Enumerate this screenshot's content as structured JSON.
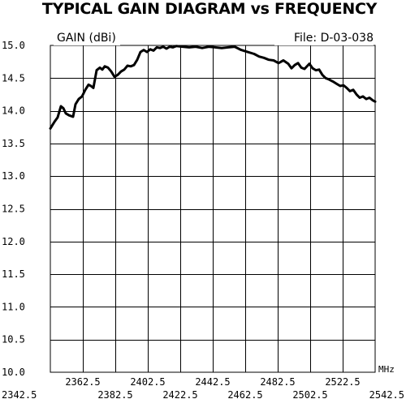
{
  "chart_data": {
    "type": "line",
    "title": "TYPICAL GAIN DIAGRAM vs FREQUENCY",
    "ylabel": "GAIN (dBi)",
    "file_label": "File:  D-03-038",
    "x_unit": "MHz",
    "xlim": [
      2342.5,
      2542.5
    ],
    "ylim": [
      10.0,
      15.0
    ],
    "grid": true,
    "x_ticks_lower": [
      "2342.5",
      "2382.5",
      "2422.5",
      "2462.5",
      "2502.5",
      "2542.5"
    ],
    "x_ticks_upper": [
      "2362.5",
      "2402.5",
      "2442.5",
      "2482.5",
      "2522.5"
    ],
    "y_ticks": [
      "15.0",
      "14.5",
      "14.0",
      "13.5",
      "13.0",
      "12.5",
      "12.0",
      "11.5",
      "11.0",
      "10.5",
      "10.0"
    ],
    "series": [
      {
        "x": [
          2342.5,
          2345,
          2347,
          2349,
          2350.5,
          2352,
          2354,
          2356.5,
          2358,
          2360,
          2362,
          2364,
          2366,
          2367.5,
          2369,
          2371,
          2373,
          2374.5,
          2376,
          2378,
          2380,
          2382,
          2384,
          2386,
          2388,
          2390,
          2392,
          2394,
          2396,
          2398,
          2400,
          2402,
          2404,
          2406,
          2408,
          2410,
          2412,
          2414,
          2416,
          2418,
          2420,
          2424,
          2428,
          2432,
          2436,
          2440,
          2444,
          2448,
          2452,
          2456,
          2460,
          2464,
          2468,
          2471,
          2474,
          2477,
          2480,
          2483,
          2486,
          2489,
          2491,
          2493,
          2495,
          2497,
          2499,
          2502,
          2504,
          2506,
          2508,
          2510,
          2512,
          2514,
          2517,
          2519,
          2521,
          2523,
          2525,
          2527,
          2529,
          2531,
          2533,
          2535,
          2537,
          2539,
          2541,
          2542.5
        ],
        "values": [
          13.73,
          13.83,
          13.9,
          14.07,
          14.04,
          13.96,
          13.93,
          13.91,
          14.1,
          14.18,
          14.22,
          14.32,
          14.4,
          14.38,
          14.35,
          14.62,
          14.66,
          14.63,
          14.68,
          14.66,
          14.6,
          14.52,
          14.55,
          14.6,
          14.63,
          14.69,
          14.68,
          14.7,
          14.78,
          14.9,
          14.93,
          14.9,
          14.94,
          14.92,
          14.97,
          14.96,
          14.98,
          14.95,
          14.98,
          14.97,
          14.99,
          14.98,
          14.97,
          14.98,
          14.96,
          14.98,
          14.97,
          14.96,
          14.97,
          14.98,
          14.93,
          14.9,
          14.87,
          14.83,
          14.81,
          14.78,
          14.77,
          14.73,
          14.77,
          14.72,
          14.65,
          14.7,
          14.73,
          14.66,
          14.64,
          14.72,
          14.65,
          14.62,
          14.63,
          14.55,
          14.5,
          14.48,
          14.44,
          14.41,
          14.38,
          14.39,
          14.35,
          14.3,
          14.32,
          14.25,
          14.2,
          14.22,
          14.18,
          14.2,
          14.16,
          14.14
        ]
      }
    ]
  }
}
